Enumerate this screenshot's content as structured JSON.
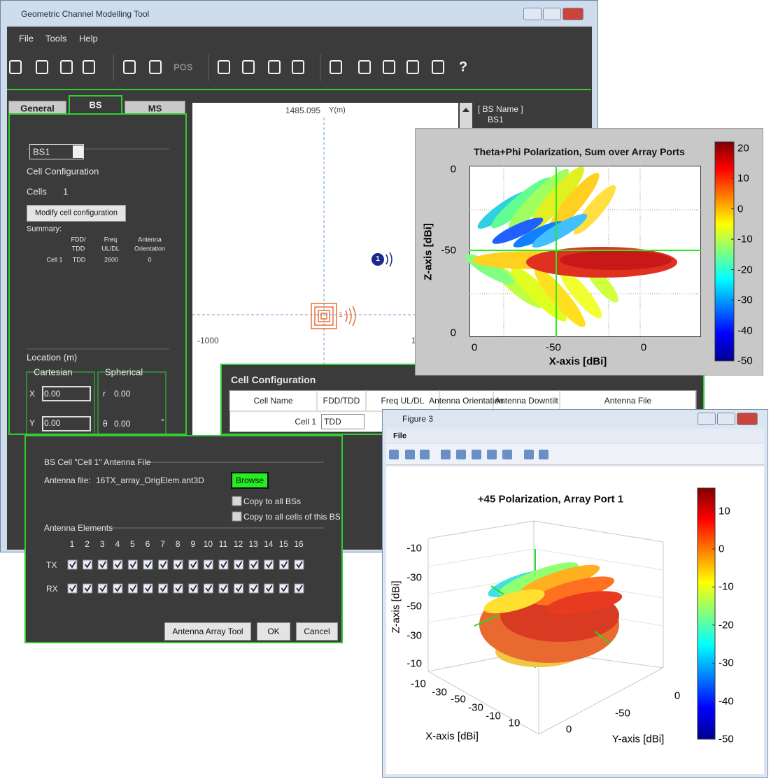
{
  "main_window": {
    "title": "Geometric Channel Modelling Tool",
    "menu": [
      "File",
      "Tools",
      "Help"
    ],
    "toolbar_labels": [
      "POS",
      "?"
    ],
    "tabs": [
      "General",
      "BS",
      "MS"
    ],
    "bs_panel": {
      "selected_bs": "BS1",
      "cell_config_label": "Cell Configuration",
      "cells_label": "Cells",
      "cells_count": "1",
      "modify_button": "Modify cell configuration",
      "summary_label": "Summary:",
      "summary_headers": [
        [
          "FDD/",
          "TDD"
        ],
        [
          "Freq",
          "UL/DL"
        ],
        [
          "Antenna",
          "Orientation"
        ]
      ],
      "summary_row": [
        "Cell 1",
        "TDD",
        "2600",
        "0"
      ]
    },
    "location": {
      "label": "Location   (m)",
      "cartesian": "Cartesian",
      "spherical": "Spherical",
      "x_label": "X",
      "x_value": "0.00",
      "y_label": "Y",
      "y_value": "0.00",
      "r_label": "r",
      "r_value": "0.00",
      "theta_label": "θ",
      "theta_value": "0.00",
      "degree": "°"
    },
    "map": {
      "y_max": "1485.095",
      "y_axis": "Y(m)",
      "x_min": "-1000",
      "x_partial": "1",
      "ms_marker": "1",
      "bs_marker": "1"
    },
    "bs_list": [
      "[ BS Name ]",
      "BS1"
    ]
  },
  "pattern_2d": {
    "title": "Theta+Phi Polarization, Sum over Array Ports",
    "z_ticks": [
      "0",
      "-50",
      "0"
    ],
    "x_ticks": [
      "0",
      "-50",
      "0"
    ],
    "z_label": "Z-axis [dBi]",
    "x_label": "X-axis [dBi]",
    "colorbar": {
      "clim": [
        -50,
        22
      ],
      "ticks": [
        20,
        10,
        0,
        -10,
        -20,
        -30,
        -40,
        -50
      ]
    }
  },
  "cell_config": {
    "title": "Cell Configuration",
    "headers": [
      "Cell Name",
      "FDD/TDD",
      "Freq UL/DL",
      "Antenna Orientation",
      "Antenna Downtilt",
      "Antenna File"
    ],
    "row": [
      "Cell 1",
      "TDD"
    ]
  },
  "antenna_dialog": {
    "group_title": "BS Cell \"Cell 1\" Antenna File",
    "file_label": "Antenna file:",
    "file_name": "16TX_array_OrigElem.ant3D",
    "browse": "Browse",
    "copy_all_bs": "Copy to all BSs",
    "copy_all_cells": "Copy to all cells of this BS",
    "elements_title": "Antenna Elements",
    "element_numbers": [
      1,
      2,
      3,
      4,
      5,
      6,
      7,
      8,
      9,
      10,
      11,
      12,
      13,
      14,
      15,
      16
    ],
    "tx_label": "TX",
    "rx_label": "RX",
    "buttons": [
      "Antenna Array Tool",
      "OK",
      "Cancel"
    ]
  },
  "figure3": {
    "title": "Figure 3",
    "menu": [
      "File"
    ],
    "plot_title": "+45 Polarization, Array Port 1",
    "z_ticks": [
      "-10",
      "-30",
      "-50",
      "-30",
      "-10"
    ],
    "x_ticks": [
      "-10",
      "-30",
      "-50",
      "-30",
      "-10",
      "10"
    ],
    "y_ticks": [
      "0",
      "-50",
      "0"
    ],
    "z_label": "Z-axis [dBi]",
    "x_label": "X-axis [dBi]",
    "y_label": "Y-axis [dBi]",
    "colorbar": {
      "clim": [
        -50,
        16
      ],
      "ticks": [
        10,
        0,
        -10,
        -20,
        -30,
        -40,
        -50
      ]
    }
  }
}
